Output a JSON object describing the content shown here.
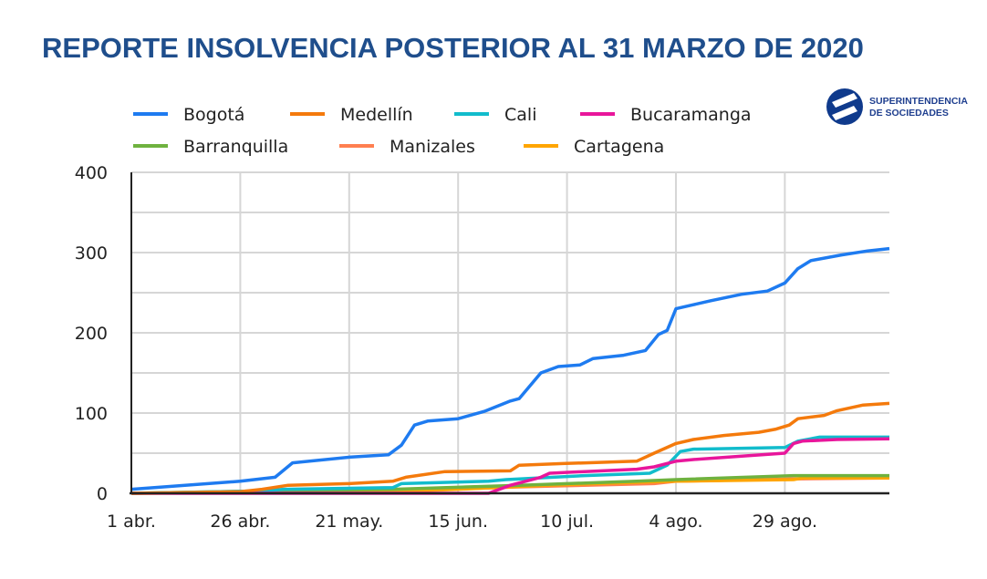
{
  "title": "REPORTE INSOLVENCIA POSTERIOR AL 31 MARZO DE 2020",
  "logo": {
    "line1": "SUPERINTENDENCIA",
    "line2": "DE SOCIEDADES",
    "color": "#0f3a8c"
  },
  "chart_data": {
    "type": "line",
    "title": "REPORTE INSOLVENCIA POSTERIOR AL 31 MARZO DE 2020",
    "xlabel": "",
    "ylabel": "",
    "xlim": [
      "2020-04-01",
      "2020-09-22"
    ],
    "ylim": [
      0,
      400
    ],
    "x_ticks": [
      {
        "date": "2020-04-01",
        "label": "1 abr."
      },
      {
        "date": "2020-04-26",
        "label": "26 abr."
      },
      {
        "date": "2020-05-21",
        "label": "21 may."
      },
      {
        "date": "2020-06-15",
        "label": "15 jun."
      },
      {
        "date": "2020-07-10",
        "label": "10 jul."
      },
      {
        "date": "2020-08-04",
        "label": "4 ago."
      },
      {
        "date": "2020-08-29",
        "label": "29 ago."
      }
    ],
    "y_ticks": [
      "0",
      "100",
      "200",
      "300",
      "400"
    ],
    "grid": true,
    "legend_position": "top",
    "series": [
      {
        "name": "Bogotá",
        "color": "#1e7bf0",
        "points": [
          [
            "2020-04-01",
            5
          ],
          [
            "2020-04-26",
            15
          ],
          [
            "2020-05-04",
            20
          ],
          [
            "2020-05-08",
            38
          ],
          [
            "2020-05-21",
            45
          ],
          [
            "2020-05-30",
            48
          ],
          [
            "2020-06-02",
            60
          ],
          [
            "2020-06-05",
            85
          ],
          [
            "2020-06-08",
            90
          ],
          [
            "2020-06-15",
            93
          ],
          [
            "2020-06-21",
            102
          ],
          [
            "2020-06-27",
            115
          ],
          [
            "2020-06-29",
            118
          ],
          [
            "2020-07-04",
            150
          ],
          [
            "2020-07-08",
            158
          ],
          [
            "2020-07-13",
            160
          ],
          [
            "2020-07-16",
            168
          ],
          [
            "2020-07-23",
            172
          ],
          [
            "2020-07-28",
            178
          ],
          [
            "2020-07-31",
            198
          ],
          [
            "2020-08-02",
            203
          ],
          [
            "2020-08-04",
            230
          ],
          [
            "2020-08-08",
            235
          ],
          [
            "2020-08-12",
            240
          ],
          [
            "2020-08-19",
            248
          ],
          [
            "2020-08-25",
            252
          ],
          [
            "2020-08-29",
            262
          ],
          [
            "2020-09-01",
            280
          ],
          [
            "2020-09-04",
            290
          ],
          [
            "2020-09-11",
            297
          ],
          [
            "2020-09-17",
            302
          ],
          [
            "2020-09-22",
            305
          ]
        ]
      },
      {
        "name": "Medellín",
        "color": "#f47a0c",
        "points": [
          [
            "2020-04-01",
            0
          ],
          [
            "2020-04-26",
            2
          ],
          [
            "2020-05-01",
            5
          ],
          [
            "2020-05-07",
            10
          ],
          [
            "2020-05-21",
            12
          ],
          [
            "2020-05-31",
            15
          ],
          [
            "2020-06-03",
            20
          ],
          [
            "2020-06-12",
            27
          ],
          [
            "2020-06-27",
            28
          ],
          [
            "2020-06-29",
            35
          ],
          [
            "2020-07-09",
            37
          ],
          [
            "2020-07-26",
            40
          ],
          [
            "2020-07-30",
            50
          ],
          [
            "2020-08-04",
            62
          ],
          [
            "2020-08-08",
            67
          ],
          [
            "2020-08-15",
            72
          ],
          [
            "2020-08-23",
            76
          ],
          [
            "2020-08-27",
            80
          ],
          [
            "2020-08-30",
            85
          ],
          [
            "2020-09-01",
            93
          ],
          [
            "2020-09-07",
            97
          ],
          [
            "2020-09-10",
            103
          ],
          [
            "2020-09-16",
            110
          ],
          [
            "2020-09-22",
            112
          ]
        ]
      },
      {
        "name": "Cali",
        "color": "#12bccc",
        "points": [
          [
            "2020-04-01",
            0
          ],
          [
            "2020-05-01",
            3
          ],
          [
            "2020-05-06",
            5
          ],
          [
            "2020-05-31",
            7
          ],
          [
            "2020-06-02",
            12
          ],
          [
            "2020-06-22",
            15
          ],
          [
            "2020-06-26",
            17
          ],
          [
            "2020-07-14",
            22
          ],
          [
            "2020-07-29",
            25
          ],
          [
            "2020-08-02",
            35
          ],
          [
            "2020-08-05",
            52
          ],
          [
            "2020-08-08",
            55
          ],
          [
            "2020-08-29",
            57
          ],
          [
            "2020-09-01",
            65
          ],
          [
            "2020-09-06",
            70
          ],
          [
            "2020-09-22",
            70
          ]
        ]
      },
      {
        "name": "Bucaramanga",
        "color": "#e8169b",
        "points": [
          [
            "2020-04-01",
            0
          ],
          [
            "2020-06-22",
            0
          ],
          [
            "2020-06-27",
            10
          ],
          [
            "2020-07-04",
            20
          ],
          [
            "2020-07-06",
            25
          ],
          [
            "2020-07-14",
            27
          ],
          [
            "2020-07-26",
            30
          ],
          [
            "2020-07-30",
            33
          ],
          [
            "2020-08-04",
            40
          ],
          [
            "2020-08-08",
            42
          ],
          [
            "2020-08-21",
            47
          ],
          [
            "2020-08-29",
            50
          ],
          [
            "2020-08-31",
            62
          ],
          [
            "2020-09-02",
            65
          ],
          [
            "2020-09-10",
            67
          ],
          [
            "2020-09-22",
            68
          ]
        ]
      },
      {
        "name": "Barranquilla",
        "color": "#6fb23f",
        "points": [
          [
            "2020-04-01",
            0
          ],
          [
            "2020-05-01",
            3
          ],
          [
            "2020-05-31",
            5
          ],
          [
            "2020-06-29",
            10
          ],
          [
            "2020-07-26",
            15
          ],
          [
            "2020-08-04",
            17
          ],
          [
            "2020-08-31",
            22
          ],
          [
            "2020-09-22",
            22
          ]
        ]
      },
      {
        "name": "Manizales",
        "color": "#ff7f50",
        "points": [
          [
            "2020-04-01",
            0
          ],
          [
            "2020-05-31",
            3
          ],
          [
            "2020-06-29",
            8
          ],
          [
            "2020-07-30",
            12
          ],
          [
            "2020-08-04",
            15
          ],
          [
            "2020-08-31",
            18
          ],
          [
            "2020-09-22",
            19
          ]
        ]
      },
      {
        "name": "Cartagena",
        "color": "#ffa500",
        "points": [
          [
            "2020-04-01",
            0
          ],
          [
            "2020-05-31",
            2
          ],
          [
            "2020-06-15",
            5
          ],
          [
            "2020-07-05",
            10
          ],
          [
            "2020-08-03",
            15
          ],
          [
            "2020-08-31",
            17
          ],
          [
            "2020-09-02",
            19
          ],
          [
            "2020-09-22",
            19
          ]
        ]
      }
    ]
  }
}
